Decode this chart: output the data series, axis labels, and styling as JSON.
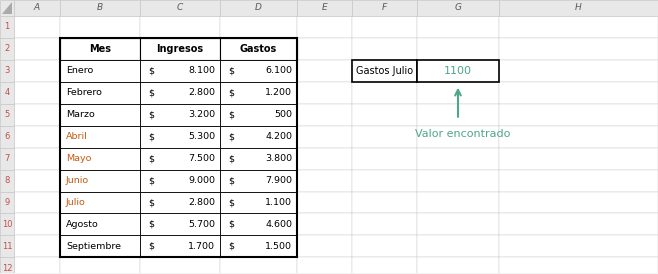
{
  "bg_color": "#F2F2F2",
  "col_headers": [
    "A",
    "B",
    "C",
    "D",
    "E",
    "F",
    "G",
    "H"
  ],
  "row_headers": [
    "1",
    "2",
    "3",
    "4",
    "5",
    "6",
    "7",
    "8",
    "9",
    "10",
    "11",
    "12"
  ],
  "table_header": [
    "Mes",
    "Ingresos",
    "Gastos"
  ],
  "months": [
    "Enero",
    "Febrero",
    "Marzo",
    "Abril",
    "Mayo",
    "Junio",
    "Julio",
    "Agosto",
    "Septiembre"
  ],
  "ingresos": [
    "8.100",
    "2.800",
    "3.200",
    "5.300",
    "7.500",
    "9.000",
    "2.800",
    "5.700",
    "1.700"
  ],
  "gastos": [
    "6.100",
    "1.200",
    "500",
    "4.200",
    "3.800",
    "7.900",
    "1.100",
    "4.600",
    "1.500"
  ],
  "highlight_months": [
    "Abril",
    "Mayo",
    "Junio",
    "Julio"
  ],
  "highlight_color": "#C55A11",
  "normal_color": "#000000",
  "border_color": "#000000",
  "result_label": "Gastos Julio",
  "result_value": "1100",
  "result_value_color": "#4EA888",
  "annotation_text": "Valor encontrado",
  "annotation_color": "#4EA888",
  "grid_line_color": "#C8C8C8",
  "header_bg": "#E8E8E8",
  "row_header_color": "#C0504D",
  "col_header_color": "#595959"
}
